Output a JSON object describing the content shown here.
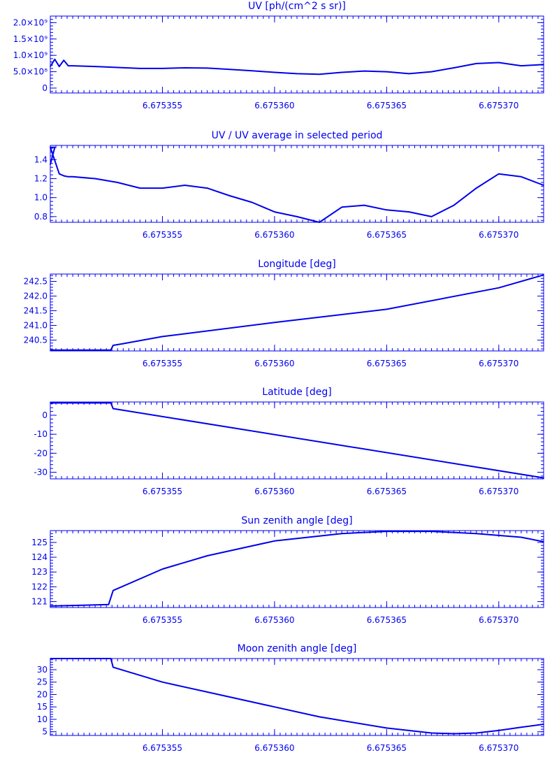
{
  "colors": {
    "foreground": "#0000ee",
    "background": "#ffffff"
  },
  "xaxis": {
    "range": [
      6.67535,
      6.675372
    ],
    "ticks": [
      6.675355,
      6.67536,
      6.675365,
      6.67537
    ],
    "tick_labels": [
      "6.675355",
      "6.675360",
      "6.675365",
      "6.675370"
    ]
  },
  "chart_data": [
    {
      "type": "line",
      "title": "UV [ph/(cm^2 s sr)]",
      "ylim": [
        -0.15,
        2.2
      ],
      "yticks": [
        0,
        0.5,
        1.0,
        1.5,
        2.0
      ],
      "ytick_labels": [
        "0",
        "5.0×10⁸",
        "1.0×10⁹",
        "1.5×10⁹",
        "2.0×10⁹"
      ],
      "y_scale_note": "values in units of 1e9",
      "x": [
        6.67535,
        6.6753502,
        6.6753504,
        6.6753506,
        6.6753508,
        6.675351,
        6.675352,
        6.675353,
        6.675354,
        6.675355,
        6.675356,
        6.675357,
        6.675358,
        6.675359,
        6.67536,
        6.675361,
        6.675362,
        6.675363,
        6.675364,
        6.675365,
        6.675366,
        6.675367,
        6.675368,
        6.675369,
        6.67537,
        6.675371,
        6.675372
      ],
      "y": [
        0.66,
        0.88,
        0.66,
        0.85,
        0.68,
        0.68,
        0.66,
        0.63,
        0.6,
        0.6,
        0.62,
        0.61,
        0.57,
        0.53,
        0.48,
        0.44,
        0.42,
        0.48,
        0.52,
        0.5,
        0.44,
        0.5,
        0.62,
        0.75,
        0.78,
        0.68,
        0.72
      ]
    },
    {
      "type": "line",
      "title": "UV / UV average in selected period",
      "ylim": [
        0.74,
        1.55
      ],
      "yticks": [
        0.8,
        1.0,
        1.2,
        1.4
      ],
      "ytick_labels": [
        "0.8",
        "1.0",
        "1.2",
        "1.4"
      ],
      "x": [
        6.67535,
        6.6753502,
        6.6753304,
        6.6753504,
        6.6753506,
        6.6753508,
        6.675351,
        6.675352,
        6.675353,
        6.675354,
        6.675355,
        6.675356,
        6.675357,
        6.675358,
        6.675359,
        6.67536,
        6.675361,
        6.675362,
        6.675363,
        6.675364,
        6.675365,
        6.675366,
        6.675367,
        6.675368,
        6.675369,
        6.67537,
        6.675371,
        6.675372
      ],
      "y": [
        1.35,
        1.53,
        1.53,
        1.25,
        1.23,
        1.22,
        1.22,
        1.2,
        1.16,
        1.1,
        1.1,
        1.13,
        1.1,
        1.02,
        0.95,
        0.85,
        0.8,
        0.73,
        0.9,
        0.92,
        0.87,
        0.85,
        0.8,
        0.92,
        1.1,
        1.25,
        1.22,
        1.13
      ]
    },
    {
      "type": "line",
      "title": "Longitude [deg]",
      "ylim": [
        240.13,
        242.75
      ],
      "yticks": [
        240.5,
        241.0,
        241.5,
        242.0,
        242.5
      ],
      "ytick_labels": [
        "240.5",
        "241.0",
        "241.5",
        "242.0",
        "242.5"
      ],
      "x": [
        6.67535,
        6.6753527,
        6.6753528,
        6.6753532,
        6.675355,
        6.67536,
        6.675365,
        6.67537,
        6.675372
      ],
      "y": [
        240.16,
        240.16,
        240.32,
        240.37,
        240.62,
        241.1,
        241.55,
        242.28,
        242.72
      ]
    },
    {
      "type": "line",
      "title": "Latitude [deg]",
      "ylim": [
        -33.5,
        7
      ],
      "yticks": [
        -30,
        -20,
        -10,
        0
      ],
      "ytick_labels": [
        "-30",
        "-20",
        "-10",
        "0"
      ],
      "x": [
        6.67535,
        6.6753527,
        6.6753528,
        6.675372
      ],
      "y": [
        6.5,
        6.5,
        3.5,
        -33
      ]
    },
    {
      "type": "line",
      "title": "Sun zenith angle [deg]",
      "ylim": [
        120.6,
        125.8
      ],
      "yticks": [
        121,
        122,
        123,
        124,
        125
      ],
      "ytick_labels": [
        "121",
        "122",
        "123",
        "124",
        "125"
      ],
      "x": [
        6.67535,
        6.6753526,
        6.6753528,
        6.675355,
        6.675357,
        6.67536,
        6.675363,
        6.675365,
        6.675367,
        6.675369,
        6.675371,
        6.675372
      ],
      "y": [
        120.7,
        120.8,
        121.75,
        123.2,
        124.1,
        125.1,
        125.6,
        125.75,
        125.75,
        125.6,
        125.35,
        125.05
      ]
    },
    {
      "type": "line",
      "title": "Moon zenith angle [deg]",
      "ylim": [
        3.5,
        34.5
      ],
      "yticks": [
        5,
        10,
        15,
        20,
        25,
        30
      ],
      "ytick_labels": [
        "5",
        "10",
        "15",
        "20",
        "25",
        "30"
      ],
      "x": [
        6.67535,
        6.6753527,
        6.6753528,
        6.675355,
        6.675357,
        6.67536,
        6.675362,
        6.675365,
        6.675367,
        6.675368,
        6.675369,
        6.67537,
        6.675371,
        6.675372
      ],
      "y": [
        34.5,
        34.5,
        31,
        25,
        21,
        15,
        11,
        6.5,
        4.5,
        4.2,
        4.5,
        5.5,
        6.8,
        8
      ]
    }
  ]
}
